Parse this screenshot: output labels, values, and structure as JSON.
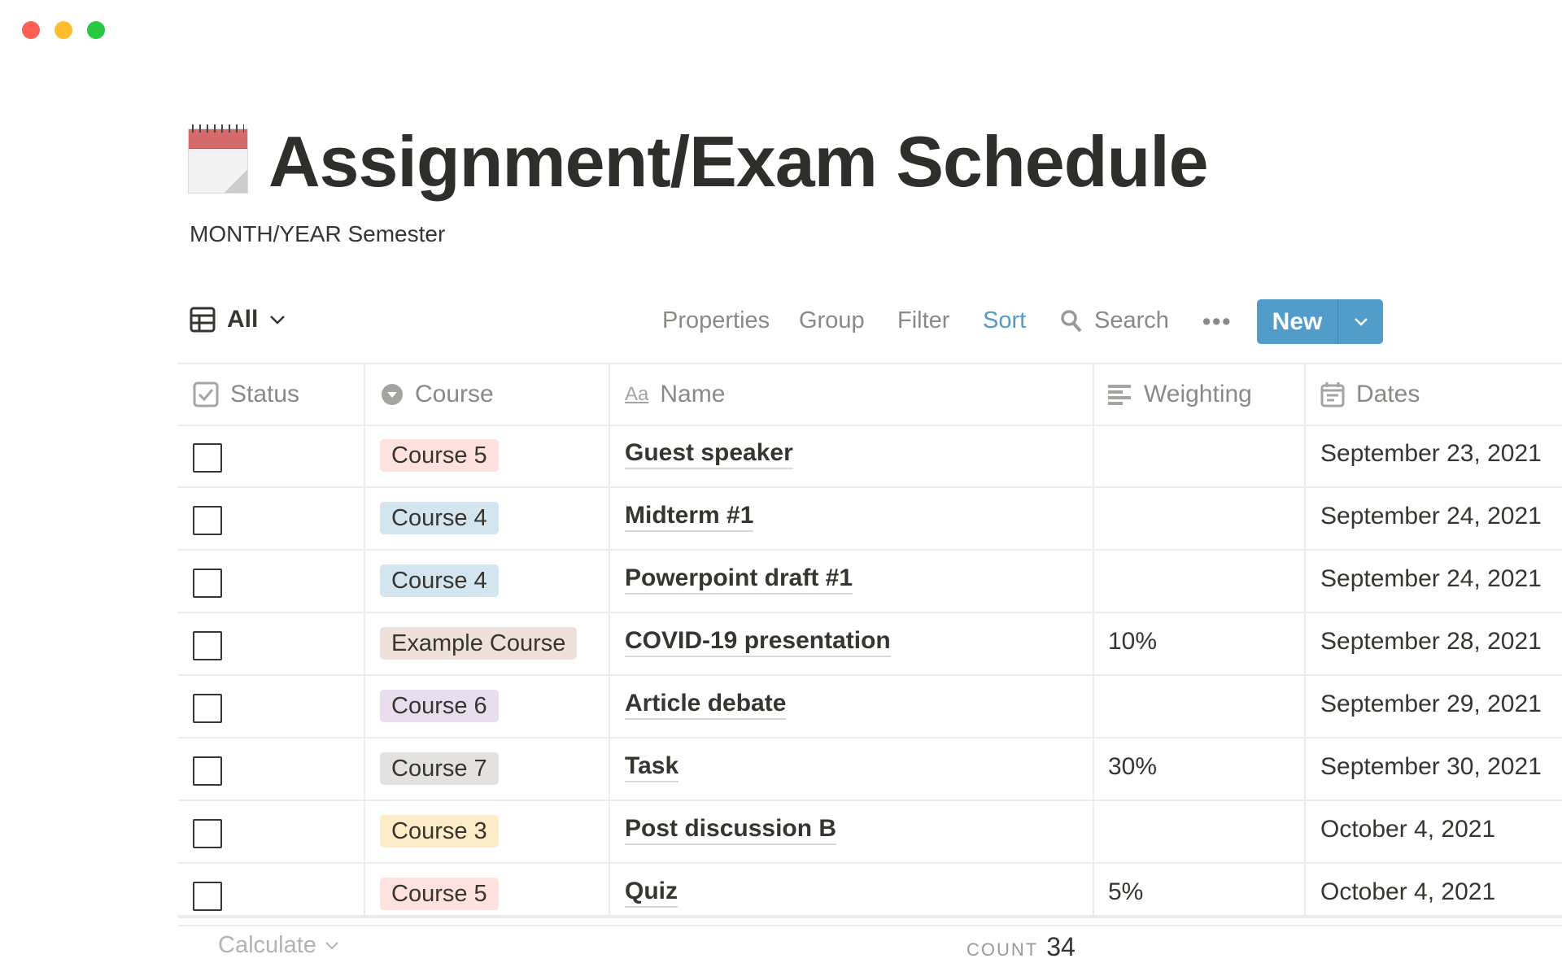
{
  "window": {
    "controls": [
      "close",
      "minimize",
      "maximize"
    ]
  },
  "page": {
    "icon": "calendar-icon",
    "title": "Assignment/Exam Schedule",
    "subtitle": "MONTH/YEAR Semester"
  },
  "toolbar": {
    "view_label": "All",
    "view_icon": "table-icon",
    "properties": "Properties",
    "group": "Group",
    "filter": "Filter",
    "sort": "Sort",
    "search": "Search",
    "new": "New",
    "accent": "#529cca"
  },
  "columns": [
    {
      "label": "Status",
      "icon": "checkbox-icon"
    },
    {
      "label": "Course",
      "icon": "select-icon"
    },
    {
      "label": "Name",
      "icon": "text-aa-icon"
    },
    {
      "label": "Weighting",
      "icon": "text-lines-icon"
    },
    {
      "label": "Dates",
      "icon": "calendar-icon"
    }
  ],
  "rows": [
    {
      "checked": false,
      "course": "Course 5",
      "course_bg": "#ffe2dd",
      "name": "Guest speaker",
      "weighting": "",
      "date": "September 23, 2021"
    },
    {
      "checked": false,
      "course": "Course 4",
      "course_bg": "#d3e5ef",
      "name": "Midterm #1",
      "weighting": "",
      "date": "September 24, 2021"
    },
    {
      "checked": false,
      "course": "Course 4",
      "course_bg": "#d3e5ef",
      "name": "Powerpoint draft #1",
      "weighting": "",
      "date": "September 24, 2021"
    },
    {
      "checked": false,
      "course": "Example Course",
      "course_bg": "#eee0da",
      "name": "COVID-19 presentation",
      "weighting": "10%",
      "date": "September 28, 2021"
    },
    {
      "checked": false,
      "course": "Course 6",
      "course_bg": "#e8deee",
      "name": "Article debate",
      "weighting": "",
      "date": "September 29, 2021"
    },
    {
      "checked": false,
      "course": "Course 7",
      "course_bg": "#e3e2e0",
      "name": "Task",
      "weighting": "30%",
      "date": "September 30, 2021"
    },
    {
      "checked": false,
      "course": "Course 3",
      "course_bg": "#fdecc8",
      "name": "Post discussion B",
      "weighting": "",
      "date": "October 4, 2021"
    },
    {
      "checked": false,
      "course": "Course 5",
      "course_bg": "#ffe2dd",
      "name": "Quiz",
      "weighting": "5%",
      "date": "October 4, 2021"
    }
  ],
  "footer": {
    "calculate": "Calculate",
    "count_label": "COUNT",
    "count_value": "34"
  }
}
